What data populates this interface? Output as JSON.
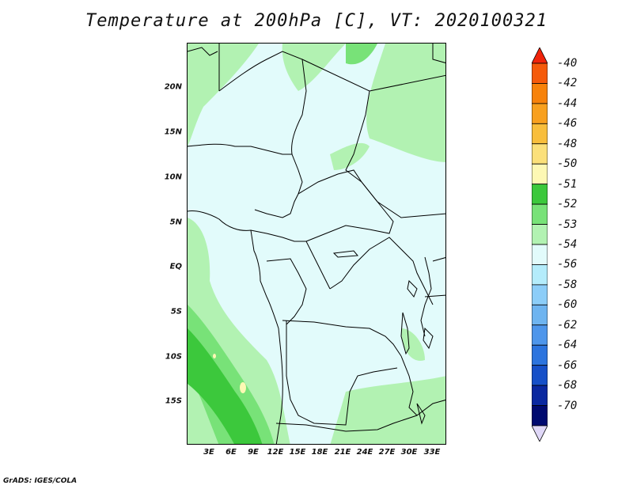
{
  "title": "Temperature at 200hPa [C], VT: 2020100321",
  "footer": "GrADS: IGES/COLA",
  "axes": {
    "lat_labels": [
      "20N",
      "15N",
      "10N",
      "5N",
      "EQ",
      "5S",
      "10S",
      "15S"
    ],
    "lon_labels": [
      "3E",
      "6E",
      "9E",
      "12E",
      "15E",
      "18E",
      "21E",
      "24E",
      "27E",
      "30E",
      "33E"
    ]
  },
  "colorbar": {
    "labels": [
      "-40",
      "-42",
      "-44",
      "-46",
      "-48",
      "-50",
      "-51",
      "-52",
      "-53",
      "-54",
      "-56",
      "-58",
      "-60",
      "-62",
      "-64",
      "-66",
      "-68",
      "-70"
    ],
    "colors": [
      "#f0240a",
      "#f55a0a",
      "#f7820a",
      "#f8a01e",
      "#f8be3c",
      "#fbe07a",
      "#fdf8b4",
      "#3cc83c",
      "#78e278",
      "#b2f2b2",
      "#e2fbfb",
      "#b4ecfb",
      "#8ccdf8",
      "#6eb4f0",
      "#4e96eb",
      "#2c74de",
      "#1650c8",
      "#0a28a0",
      "#000a70",
      "#e0d8f8"
    ]
  },
  "chart_data": {
    "type": "map",
    "variable": "Temperature at 200hPa",
    "units": "C",
    "valid_time": "2020100321",
    "lon_range": [
      0,
      35
    ],
    "lat_range": [
      -20,
      24.5
    ],
    "dominant_value_band": "-54 to -56",
    "warmer_bands_present": [
      "-54 to -53",
      "-53 to -52",
      "-52 to -51",
      "-51 to -50"
    ]
  }
}
